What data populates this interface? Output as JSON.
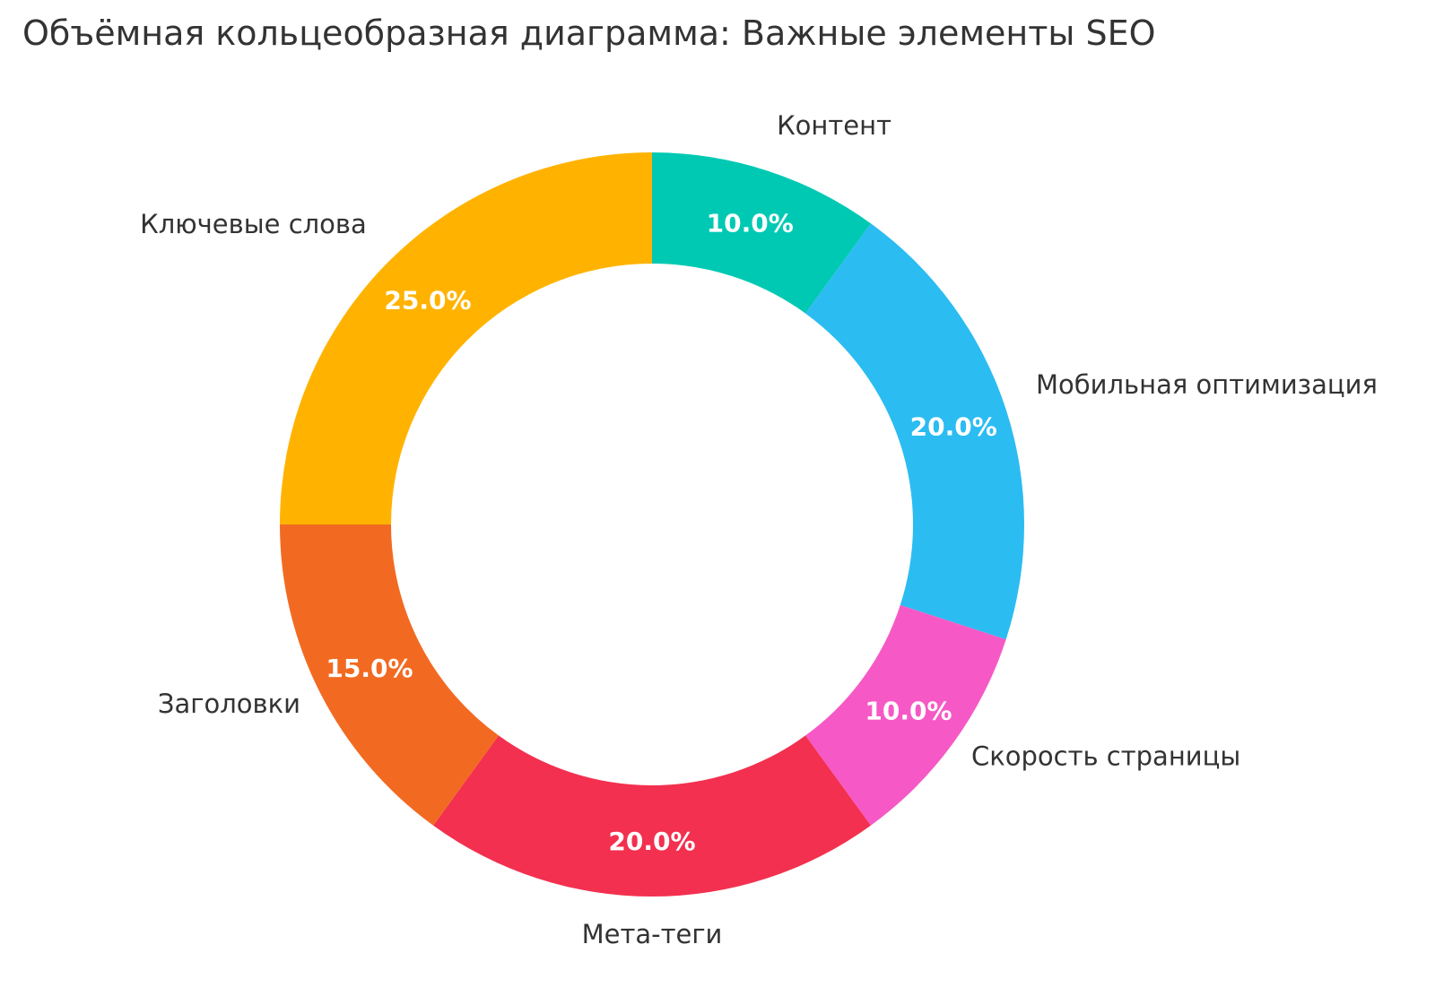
{
  "chart_data": {
    "type": "pie",
    "subtype": "donut",
    "title": "Объёмная кольцеобразная диаграмма: Важные элементы SEO",
    "labels": [
      "Контент",
      "Мобильная оптимизация",
      "Скорость страницы",
      "Мета-теги",
      "Заголовки",
      "Ключевые слова"
    ],
    "values": [
      10.0,
      20.0,
      10.0,
      20.0,
      15.0,
      25.0
    ],
    "pct_labels": [
      "10.0%",
      "20.0%",
      "10.0%",
      "20.0%",
      "15.0%",
      "25.0%"
    ],
    "colors": [
      "#00C9B3",
      "#2BBCF2",
      "#F659C5",
      "#F3304F",
      "#F26A21",
      "#FFB300"
    ],
    "start_angle_deg": 0,
    "direction": "clockwise",
    "hole_ratio": 0.7,
    "legend": "none",
    "grid": "off",
    "title_color": "#333333",
    "label_text_color": "#333333",
    "pct_text_color": "#ffffff",
    "background_color": "#ffffff"
  }
}
